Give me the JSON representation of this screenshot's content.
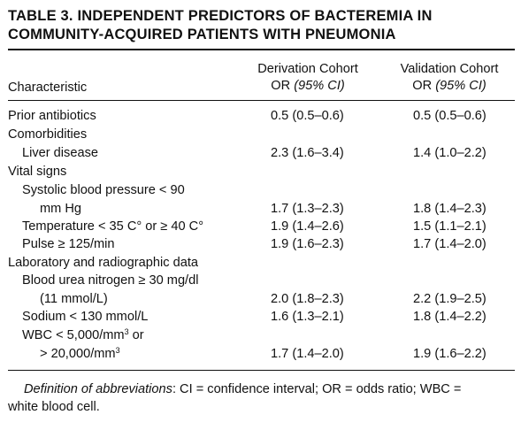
{
  "table": {
    "title_line1": "TABLE 3. INDEPENDENT PREDICTORS OF BACTEREMIA IN",
    "title_line2": "COMMUNITY-ACQUIRED PATIENTS WITH PNEUMONIA",
    "col_characteristic": "Characteristic",
    "col_derivation": "Derivation Cohort",
    "col_validation": "Validation Cohort",
    "col_or": "OR",
    "col_ci": "(95% CI)",
    "rows": [
      {
        "label": "Prior antibiotics",
        "derivation": "0.5 (0.5–0.6)",
        "validation": "0.5 (0.5–0.6)"
      },
      {
        "label": "Comorbidities",
        "derivation": "",
        "validation": ""
      },
      {
        "label": "Liver disease",
        "derivation": "2.3 (1.6–3.4)",
        "validation": "1.4 (1.0–2.2)"
      },
      {
        "label": "Vital signs",
        "derivation": "",
        "validation": ""
      },
      {
        "label": "Systolic blood pressure < 90",
        "derivation": "",
        "validation": ""
      },
      {
        "label": "mm Hg",
        "derivation": "1.7 (1.3–2.3)",
        "validation": "1.8 (1.4–2.3)"
      },
      {
        "label": "Temperature < 35 C° or ≥ 40 C°",
        "derivation": "1.9 (1.4–2.6)",
        "validation": "1.5 (1.1–2.1)"
      },
      {
        "label": "Pulse ≥ 125/min",
        "derivation": "1.9 (1.6–2.3)",
        "validation": "1.7 (1.4–2.0)"
      },
      {
        "label": "Laboratory and radiographic data",
        "derivation": "",
        "validation": ""
      },
      {
        "label": "Blood urea nitrogen ≥ 30 mg/dl",
        "derivation": "",
        "validation": ""
      },
      {
        "label": "(11 mmol/L)",
        "derivation": "2.0 (1.8–2.3)",
        "validation": "2.2 (1.9–2.5)"
      },
      {
        "label": "Sodium < 130 mmol/L",
        "derivation": "1.6 (1.3–2.1)",
        "validation": "1.8 (1.4–2.2)"
      },
      {
        "label": "WBC < 5,000/mm",
        "label_sup": "3",
        "label_tail": " or",
        "derivation": "",
        "validation": ""
      },
      {
        "label": "> 20,000/mm",
        "label_sup": "3",
        "label_tail": "",
        "derivation": "1.7 (1.4–2.0)",
        "validation": "1.9 (1.6–2.2)"
      }
    ],
    "footnote_label": "Definition of abbreviations",
    "footnote_text": ": CI = confidence interval; OR = odds ratio; WBC =",
    "footnote_text2": "white blood cell."
  }
}
